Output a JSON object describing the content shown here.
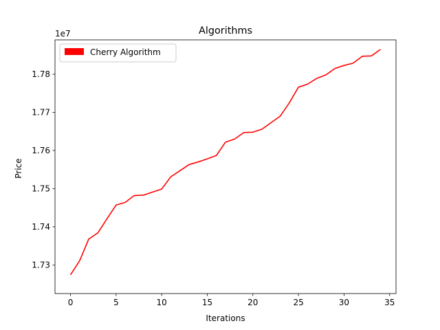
{
  "chart_data": {
    "type": "line",
    "title": "Algorithms",
    "xlabel": "Iterations",
    "ylabel": "Price",
    "offset_text": "1e7",
    "xlim": [
      -1.7,
      35.7
    ],
    "ylim": [
      17225000,
      17890000
    ],
    "xticks": [
      0,
      5,
      10,
      15,
      20,
      25,
      30,
      35
    ],
    "xtick_labels": [
      "0",
      "5",
      "10",
      "15",
      "20",
      "25",
      "30",
      "35"
    ],
    "yticks": [
      17300000,
      17400000,
      17500000,
      17600000,
      17700000,
      17800000
    ],
    "ytick_labels": [
      "1.73",
      "1.74",
      "1.75",
      "1.76",
      "1.77",
      "1.78"
    ],
    "grid": false,
    "legend_position": "upper left",
    "series": [
      {
        "name": "Cherry Algorithm",
        "color": "#ff0000",
        "x": [
          0,
          1,
          2,
          3,
          4,
          5,
          6,
          7,
          8,
          9,
          10,
          11,
          12,
          13,
          14,
          15,
          16,
          17,
          18,
          19,
          20,
          21,
          22,
          23,
          24,
          25,
          26,
          27,
          28,
          29,
          30,
          31,
          32,
          33,
          34
        ],
        "values": [
          17274000,
          17311000,
          17368000,
          17384000,
          17421000,
          17457000,
          17464000,
          17482000,
          17483000,
          17491000,
          17499000,
          17531000,
          17547000,
          17563000,
          17570000,
          17578000,
          17587000,
          17622000,
          17630000,
          17647000,
          17648000,
          17656000,
          17673000,
          17690000,
          17725000,
          17766000,
          17774000,
          17789000,
          17798000,
          17815000,
          17823000,
          17829000,
          17847000,
          17848000,
          17865000
        ]
      }
    ]
  }
}
